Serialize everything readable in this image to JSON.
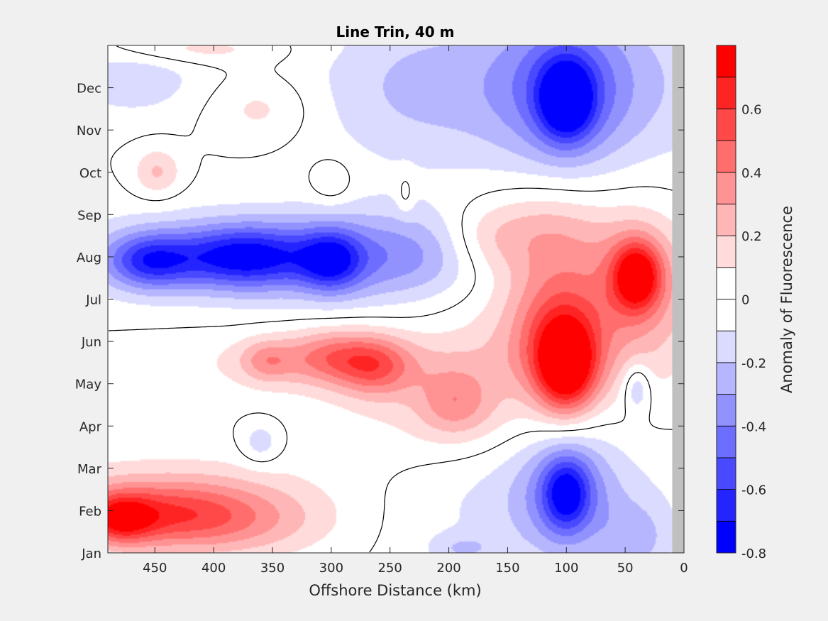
{
  "chart_data": {
    "type": "heatmap",
    "subtype": "filled-contour",
    "title": "Line Trin, 40 m",
    "xlabel": "Offshore Distance (km)",
    "ylabel": "",
    "x_direction": "reversed",
    "xlim": [
      490,
      0
    ],
    "xticks": [
      450,
      400,
      350,
      300,
      250,
      200,
      150,
      100,
      50,
      0
    ],
    "ylim": [
      0,
      12
    ],
    "yticks": [
      {
        "label": "Jan",
        "value": 0
      },
      {
        "label": "Feb",
        "value": 1
      },
      {
        "label": "Mar",
        "value": 2
      },
      {
        "label": "Apr",
        "value": 3
      },
      {
        "label": "May",
        "value": 4
      },
      {
        "label": "Jun",
        "value": 5
      },
      {
        "label": "Jul",
        "value": 6
      },
      {
        "label": "Aug",
        "value": 7
      },
      {
        "label": "Sep",
        "value": 8
      },
      {
        "label": "Oct",
        "value": 9
      },
      {
        "label": "Nov",
        "value": 10
      },
      {
        "label": "Dec",
        "value": 11
      }
    ],
    "colorbar": {
      "label": "Anomaly of Fluorescence",
      "range": [
        -0.8,
        0.8
      ],
      "levels": [
        -0.8,
        -0.7,
        -0.6,
        -0.5,
        -0.4,
        -0.3,
        -0.2,
        -0.1,
        0,
        0.1,
        0.2,
        0.3,
        0.4,
        0.5,
        0.6,
        0.7,
        0.8
      ],
      "ticks": [
        0.6,
        0.4,
        0.2,
        0,
        -0.2,
        -0.4,
        -0.6,
        -0.8
      ],
      "tick_labels": [
        "0.6",
        "0.4",
        "0.2",
        "0",
        "-0.2",
        "-0.4",
        "-0.6",
        "-0.8"
      ]
    },
    "no_data_x_range": [
      10,
      0
    ],
    "features": [
      {
        "x": 100,
        "y": 4.35,
        "value": 0.72,
        "sx": 18,
        "sy": 0.75
      },
      {
        "x": 108,
        "y": 5.3,
        "value": 0.35,
        "sx": 28,
        "sy": 1.0
      },
      {
        "x": 40,
        "y": 6.55,
        "value": 0.62,
        "sx": 14,
        "sy": 0.55
      },
      {
        "x": 40,
        "y": 6.5,
        "value": 0.25,
        "sx": 30,
        "sy": 1.2
      },
      {
        "x": 118,
        "y": 7.5,
        "value": 0.25,
        "sx": 35,
        "sy": 0.8
      },
      {
        "x": 170,
        "y": 7.4,
        "value": 0.18,
        "sx": 25,
        "sy": 0.6
      },
      {
        "x": 90,
        "y": 5.6,
        "value": 0.18,
        "sx": 80,
        "sy": 1.5
      },
      {
        "x": 300,
        "y": 4.65,
        "value": 0.3,
        "sx": 28,
        "sy": 0.45
      },
      {
        "x": 262,
        "y": 4.4,
        "value": 0.33,
        "sx": 22,
        "sy": 0.5
      },
      {
        "x": 355,
        "y": 4.55,
        "value": 0.23,
        "sx": 16,
        "sy": 0.35
      },
      {
        "x": 195,
        "y": 3.55,
        "value": 0.25,
        "sx": 22,
        "sy": 0.55
      },
      {
        "x": 290,
        "y": 4.5,
        "value": 0.15,
        "sx": 110,
        "sy": 0.55
      },
      {
        "x": 200,
        "y": 3.2,
        "value": 0.12,
        "sx": 70,
        "sy": 0.8
      },
      {
        "x": 445,
        "y": 0.9,
        "value": 0.4,
        "sx": 55,
        "sy": 0.55
      },
      {
        "x": 380,
        "y": 0.7,
        "value": 0.22,
        "sx": 60,
        "sy": 0.6
      },
      {
        "x": 480,
        "y": 0.8,
        "value": 0.45,
        "sx": 20,
        "sy": 0.4
      },
      {
        "x": 440,
        "y": 1.5,
        "value": 0.12,
        "sx": 110,
        "sy": 0.7
      },
      {
        "x": 420,
        "y": 11.9,
        "value": 0.15,
        "sx": 55,
        "sy": 0.25
      },
      {
        "x": 360,
        "y": 10.5,
        "value": 0.14,
        "sx": 30,
        "sy": 0.55
      },
      {
        "x": 448,
        "y": 9.0,
        "value": 0.22,
        "sx": 14,
        "sy": 0.4
      },
      {
        "x": 300,
        "y": 8.8,
        "value": 0.15,
        "sx": 12,
        "sy": 0.35
      },
      {
        "x": 237,
        "y": 8.5,
        "value": 0.12,
        "sx": 5,
        "sy": 0.35
      },
      {
        "x": 100,
        "y": 10.7,
        "value": -0.6,
        "sx": 16,
        "sy": 0.65
      },
      {
        "x": 100,
        "y": 11.0,
        "value": -0.35,
        "sx": 40,
        "sy": 1.3
      },
      {
        "x": 80,
        "y": 11.1,
        "value": -0.18,
        "sx": 130,
        "sy": 1.6
      },
      {
        "x": 230,
        "y": 11.0,
        "value": -0.14,
        "sx": 60,
        "sy": 1.3
      },
      {
        "x": 470,
        "y": 11.2,
        "value": -0.18,
        "sx": 40,
        "sy": 0.6
      },
      {
        "x": 375,
        "y": 7.0,
        "value": -0.5,
        "sx": 40,
        "sy": 0.5
      },
      {
        "x": 455,
        "y": 6.9,
        "value": -0.45,
        "sx": 25,
        "sy": 0.45
      },
      {
        "x": 300,
        "y": 6.9,
        "value": -0.42,
        "sx": 18,
        "sy": 0.5
      },
      {
        "x": 360,
        "y": 7.0,
        "value": -0.3,
        "sx": 120,
        "sy": 0.75
      },
      {
        "x": 240,
        "y": 7.0,
        "value": -0.2,
        "sx": 60,
        "sy": 0.8
      },
      {
        "x": 100,
        "y": 1.4,
        "value": -0.45,
        "sx": 14,
        "sy": 0.6
      },
      {
        "x": 100,
        "y": 1.5,
        "value": -0.28,
        "sx": 30,
        "sy": 1.1
      },
      {
        "x": 120,
        "y": 1.2,
        "value": -0.15,
        "sx": 90,
        "sy": 1.2
      },
      {
        "x": 40,
        "y": 3.9,
        "value": -0.25,
        "sx": 8,
        "sy": 0.4
      },
      {
        "x": 40,
        "y": 0.3,
        "value": -0.18,
        "sx": 20,
        "sy": 0.6
      },
      {
        "x": 360,
        "y": 2.6,
        "value": -0.18,
        "sx": 12,
        "sy": 0.35
      },
      {
        "x": 188,
        "y": 0.1,
        "value": -0.15,
        "sx": 20,
        "sy": 0.25
      }
    ]
  }
}
